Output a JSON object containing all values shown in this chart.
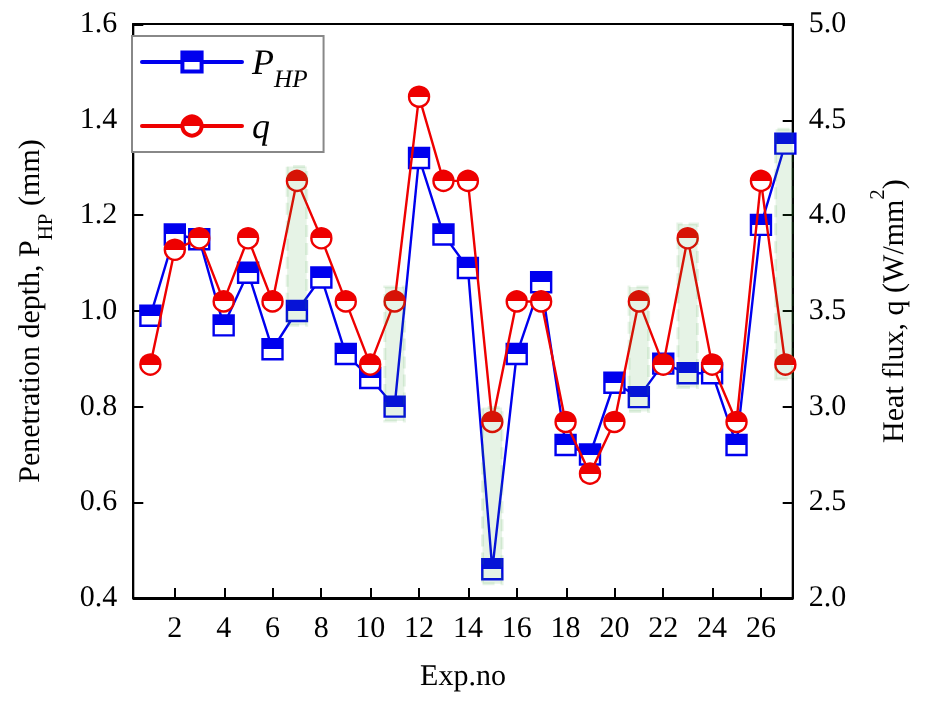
{
  "chart_data": {
    "type": "line",
    "xlabel": "Exp.no",
    "ylabel": "Penetration depth, P$_{HP}$ (mm)",
    "y2label": "Heat flux, q (W/mm$^{2}$)",
    "x": [
      1,
      2,
      3,
      4,
      5,
      6,
      7,
      8,
      9,
      10,
      11,
      12,
      13,
      14,
      15,
      16,
      17,
      18,
      19,
      20,
      21,
      22,
      23,
      24,
      25,
      26,
      27
    ],
    "xlim": [
      0.3,
      27.3
    ],
    "xticks": [
      2,
      4,
      6,
      8,
      10,
      12,
      14,
      16,
      18,
      20,
      22,
      24,
      26
    ],
    "ylim": [
      0.4,
      1.6
    ],
    "yticks": [
      0.4,
      0.6,
      0.8,
      {
        "value": 1,
        "label": "1.0"
      },
      1.2,
      1.4,
      1.6
    ],
    "y2lim": [
      2.0,
      5.0
    ],
    "y2ticks": [
      {
        "value": 2,
        "label": "2.0"
      },
      2.5,
      {
        "value": 3,
        "label": "3.0"
      },
      3.5,
      {
        "value": 4,
        "label": "4.0"
      },
      4.5,
      {
        "value": 5,
        "label": "5.0"
      }
    ],
    "grid": false,
    "legend": "top left",
    "line_style": "solid",
    "series": [
      {
        "name": "P$_{HP}$",
        "color": "#0000ee",
        "marker": "square",
        "values": [
          0.99,
          1.16,
          1.15,
          0.97,
          1.08,
          0.92,
          1.0,
          1.07,
          0.91,
          0.86,
          0.8,
          1.32,
          1.16,
          1.09,
          0.46,
          0.91,
          1.06,
          0.72,
          0.7,
          0.85,
          0.82,
          0.89,
          0.87,
          0.87,
          0.72,
          1.18,
          1.35
        ]
      },
      {
        "name": "q",
        "color": "#ee0000",
        "marker": "circle",
        "axis": "y2",
        "values": [
          3.22,
          3.82,
          3.88,
          3.55,
          3.88,
          3.55,
          4.18,
          3.88,
          3.55,
          3.22,
          3.55,
          4.62,
          4.18,
          4.18,
          2.92,
          3.55,
          3.55,
          2.92,
          2.65,
          2.92,
          3.55,
          3.22,
          3.88,
          3.22,
          2.92,
          4.18,
          3.22
        ]
      }
    ],
    "bands": [
      {
        "axis": "x",
        "from": 6.6,
        "to": 7.4,
        "color": "#339933"
      },
      {
        "axis": "x",
        "from": 10.6,
        "to": 11.4,
        "color": "#339933"
      },
      {
        "axis": "x",
        "from": 14.6,
        "to": 15.4,
        "color": "#339933"
      },
      {
        "axis": "x",
        "from": 20.6,
        "to": 21.4,
        "color": "#339933"
      },
      {
        "axis": "x",
        "from": 22.6,
        "to": 23.4,
        "color": "#339933"
      },
      {
        "axis": "x",
        "from": 26.6,
        "to": 27.4,
        "color": "#339933"
      }
    ]
  }
}
